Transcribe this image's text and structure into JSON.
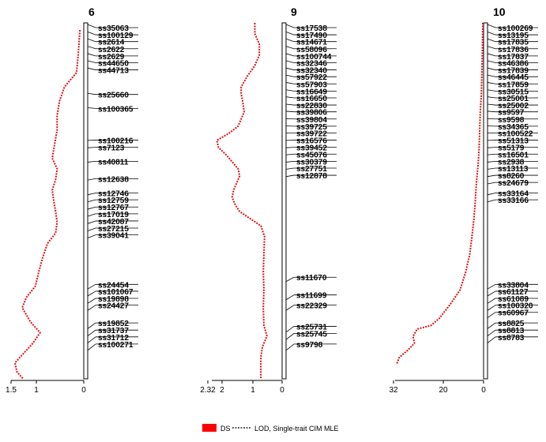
{
  "chart_data": {
    "type": "line",
    "legend": {
      "placement": "bottom-center",
      "entries": [
        {
          "label": "DS",
          "symbol": "red-box",
          "color": "#ff0000"
        },
        {
          "label": "LOD, Single-trait CIM MLE",
          "symbol": "dashed-line",
          "color": "#000000"
        }
      ]
    },
    "line_color": "#dd1111",
    "panels": [
      {
        "name": "6",
        "xticks": [
          "1.5",
          "1",
          "0"
        ],
        "xlim": [
          0,
          1.5
        ],
        "markers": [
          "ss35063",
          "ss100129",
          "ss2614",
          "ss2622",
          "ss2629",
          "ss44650",
          "ss44713",
          "ss25660",
          "ss100365",
          "ss100216",
          "ss7123",
          "ss40811",
          "ss12638",
          "ss12746",
          "ss12759",
          "ss12767",
          "ss17019",
          "ss42087",
          "ss27215",
          "ss39041",
          "ss24454",
          "ss101067",
          "ss19898",
          "ss24427",
          "ss19852",
          "ss31737",
          "ss31712",
          "ss100271"
        ],
        "marker_pos": [
          0,
          0.021,
          0.041,
          0.062,
          0.083,
          0.103,
          0.124,
          0.196,
          0.237,
          0.33,
          0.351,
          0.392,
          0.443,
          0.485,
          0.505,
          0.526,
          0.546,
          0.567,
          0.588,
          0.608,
          0.753,
          0.773,
          0.794,
          0.814,
          0.866,
          0.887,
          0.907,
          0.928
        ],
        "profile": [
          [
            0.02,
            0.08
          ],
          [
            0.06,
            0.1
          ],
          [
            0.1,
            0.12
          ],
          [
            0.14,
            0.15
          ],
          [
            0.18,
            0.4
          ],
          [
            0.22,
            0.5
          ],
          [
            0.26,
            0.55
          ],
          [
            0.3,
            0.55
          ],
          [
            0.34,
            0.6
          ],
          [
            0.38,
            0.65
          ],
          [
            0.41,
            0.55
          ],
          [
            0.44,
            0.58
          ],
          [
            0.47,
            0.65
          ],
          [
            0.5,
            0.62
          ],
          [
            0.53,
            0.58
          ],
          [
            0.56,
            0.55
          ],
          [
            0.59,
            0.58
          ],
          [
            0.62,
            0.75
          ],
          [
            0.66,
            0.85
          ],
          [
            0.7,
            0.93
          ],
          [
            0.74,
            1.0
          ],
          [
            0.77,
            1.18
          ],
          [
            0.8,
            1.27
          ],
          [
            0.84,
            1.1
          ],
          [
            0.87,
            0.9
          ],
          [
            0.9,
            1.05
          ],
          [
            0.93,
            1.25
          ],
          [
            0.955,
            1.42
          ],
          [
            0.98,
            1.38
          ],
          [
            1.0,
            1.25
          ]
        ]
      },
      {
        "name": "9",
        "xticks": [
          "2.32",
          "2",
          "1",
          "0"
        ],
        "xlim": [
          0,
          2.32
        ],
        "markers": [
          "ss17538",
          "ss17490",
          "ss14671",
          "ss58096",
          "ss100744",
          "ss32346",
          "ss32340",
          "ss57922",
          "ss57903",
          "ss16649",
          "ss16650",
          "ss22830",
          "ss39806",
          "ss39804",
          "ss39725",
          "ss39722",
          "ss16576",
          "ss39452",
          "ss45076",
          "ss30379",
          "ss27751",
          "ss12878",
          "ss11670",
          "ss11699",
          "ss22329",
          "ss25731",
          "ss25745",
          "ss9798"
        ],
        "marker_pos": [
          0,
          0.021,
          0.041,
          0.062,
          0.083,
          0.103,
          0.124,
          0.144,
          0.165,
          0.186,
          0.206,
          0.227,
          0.247,
          0.268,
          0.289,
          0.309,
          0.33,
          0.351,
          0.371,
          0.392,
          0.412,
          0.433,
          0.732,
          0.784,
          0.814,
          0.876,
          0.897,
          0.928
        ],
        "profile": [
          [
            0.0,
            0.9
          ],
          [
            0.03,
            0.9
          ],
          [
            0.06,
            0.75
          ],
          [
            0.09,
            0.75
          ],
          [
            0.12,
            0.9
          ],
          [
            0.15,
            1.15
          ],
          [
            0.18,
            1.35
          ],
          [
            0.2,
            1.35
          ],
          [
            0.22,
            1.3
          ],
          [
            0.25,
            1.25
          ],
          [
            0.27,
            1.35
          ],
          [
            0.29,
            1.45
          ],
          [
            0.31,
            1.75
          ],
          [
            0.33,
            2.15
          ],
          [
            0.35,
            2.1
          ],
          [
            0.37,
            1.85
          ],
          [
            0.39,
            1.65
          ],
          [
            0.41,
            1.45
          ],
          [
            0.43,
            1.4
          ],
          [
            0.45,
            1.5
          ],
          [
            0.47,
            1.6
          ],
          [
            0.49,
            1.65
          ],
          [
            0.51,
            1.55
          ],
          [
            0.53,
            1.4
          ],
          [
            0.55,
            1.05
          ],
          [
            0.57,
            0.7
          ],
          [
            0.6,
            0.58
          ],
          [
            0.65,
            0.6
          ],
          [
            0.7,
            0.62
          ],
          [
            0.75,
            0.6
          ],
          [
            0.8,
            0.62
          ],
          [
            0.85,
            0.6
          ],
          [
            0.88,
            0.5
          ],
          [
            0.91,
            0.65
          ],
          [
            0.94,
            0.7
          ],
          [
            0.97,
            0.7
          ],
          [
            1.0,
            0.7
          ]
        ]
      },
      {
        "name": "10",
        "xticks": [
          "32",
          "20",
          "0"
        ],
        "xlim": [
          0,
          32
        ],
        "markers": [
          "ss100269",
          "ss13195",
          "ss17835",
          "ss17836",
          "ss17837",
          "ss46386",
          "ss17839",
          "ss46445",
          "ss17859",
          "ss30515",
          "ss25001",
          "ss25002",
          "ss9597",
          "ss9598",
          "ss34365",
          "ss100522",
          "ss51313",
          "ss5179",
          "ss16501",
          "ss2938",
          "ss13113",
          "ss8260",
          "ss24679",
          "ss33164",
          "ss33166",
          "ss33804",
          "ss61127",
          "ss61089",
          "ss100320",
          "ss60967",
          "ss8825",
          "ss8813",
          "ss8783"
        ],
        "marker_pos": [
          0,
          0.021,
          0.041,
          0.062,
          0.083,
          0.103,
          0.124,
          0.144,
          0.165,
          0.186,
          0.206,
          0.227,
          0.247,
          0.268,
          0.289,
          0.309,
          0.33,
          0.351,
          0.371,
          0.392,
          0.412,
          0.433,
          0.454,
          0.485,
          0.505,
          0.753,
          0.773,
          0.794,
          0.814,
          0.835,
          0.866,
          0.887,
          0.907
        ],
        "profile": [
          [
            0.0,
            0.3
          ],
          [
            0.1,
            0.5
          ],
          [
            0.2,
            0.8
          ],
          [
            0.25,
            1.2
          ],
          [
            0.3,
            1.4
          ],
          [
            0.35,
            1.6
          ],
          [
            0.4,
            2.0
          ],
          [
            0.45,
            2.6
          ],
          [
            0.5,
            3.0
          ],
          [
            0.55,
            3.5
          ],
          [
            0.6,
            4.2
          ],
          [
            0.65,
            5.0
          ],
          [
            0.7,
            6.5
          ],
          [
            0.75,
            8.5
          ],
          [
            0.79,
            12.0
          ],
          [
            0.83,
            16.0
          ],
          [
            0.85,
            19.0
          ],
          [
            0.86,
            24.0
          ],
          [
            0.88,
            25.5
          ],
          [
            0.9,
            25.0
          ],
          [
            0.92,
            27.5
          ],
          [
            0.94,
            30.5
          ],
          [
            0.96,
            31.5
          ]
        ]
      }
    ]
  }
}
